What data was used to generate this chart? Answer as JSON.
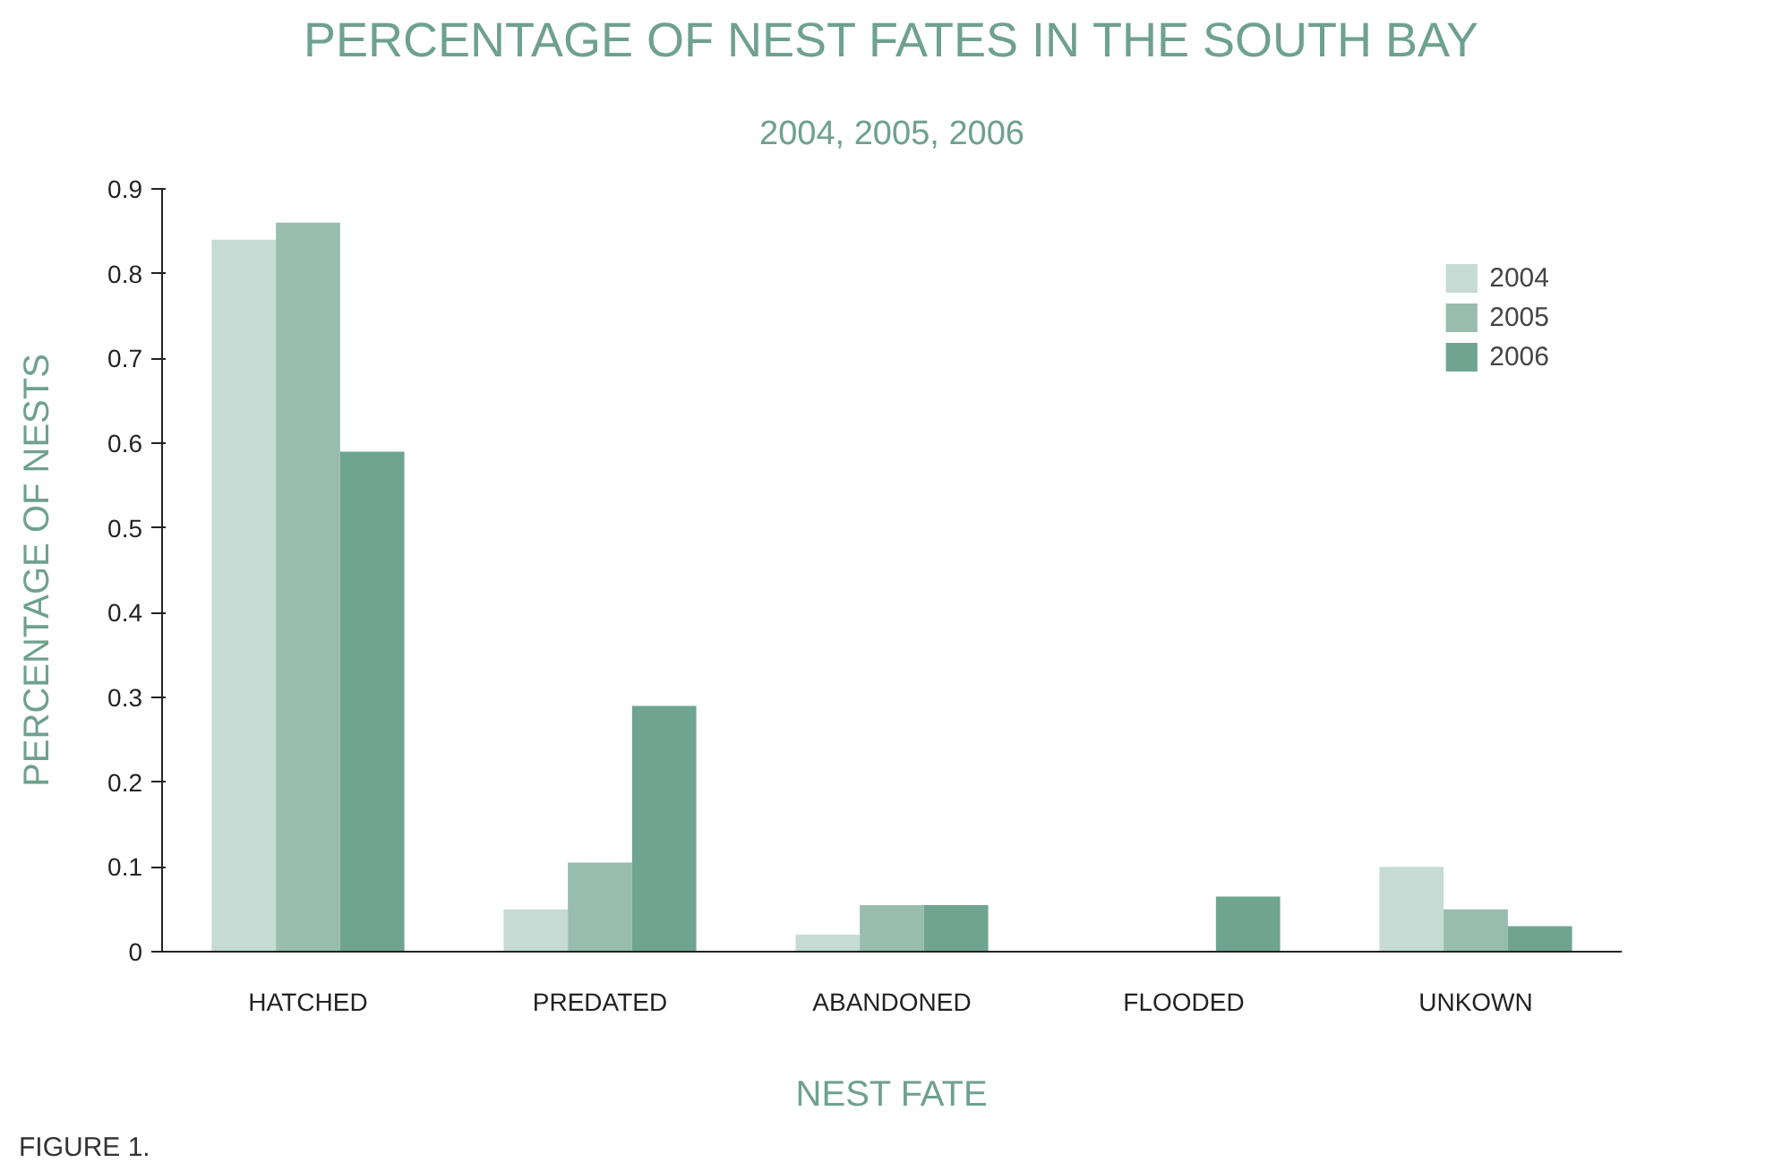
{
  "chart_data": {
    "type": "bar",
    "title": "PERCENTAGE OF NEST FATES IN THE SOUTH BAY",
    "subtitle": "2004, 2005, 2006",
    "xlabel": "NEST FATE",
    "ylabel": "PERCENTAGE OF NESTS",
    "categories": [
      "HATCHED",
      "PREDATED",
      "ABANDONED",
      "FLOODED",
      "UNKOWN"
    ],
    "series": [
      {
        "name": "2004",
        "color": "#c5dbd3",
        "values": [
          0.84,
          0.05,
          0.02,
          0,
          0.1
        ]
      },
      {
        "name": "2005",
        "color": "#98bcad",
        "values": [
          0.86,
          0.105,
          0.055,
          0,
          0.05
        ]
      },
      {
        "name": "2006",
        "color": "#6fa491",
        "values": [
          0.59,
          0.29,
          0.055,
          0.065,
          0.03
        ]
      }
    ],
    "ylim": [
      0,
      0.9
    ],
    "yticks": [
      0,
      0.1,
      0.2,
      0.3,
      0.4,
      0.5,
      0.6,
      0.7,
      0.8,
      0.9
    ],
    "grid": false,
    "legend": "top right",
    "annotations": [
      "FIGURE 1."
    ]
  }
}
